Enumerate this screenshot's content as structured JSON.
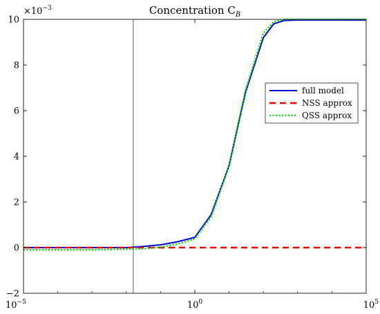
{
  "chart_data": {
    "type": "line",
    "title": "Concentration C",
    "title_subscript": "B",
    "xlabel": "",
    "ylabel": "",
    "x_scale": "log",
    "xlim": [
      1e-05,
      100000
    ],
    "ylim": [
      -2,
      10
    ],
    "y_exponent": {
      "base": "×10",
      "power": "−3"
    },
    "x_ticks": [
      {
        "value": 1e-05,
        "base": "10",
        "exp": "−5"
      },
      {
        "value": 1,
        "base": "10",
        "exp": "0"
      },
      {
        "value": 100000,
        "base": "10",
        "exp": "5"
      }
    ],
    "y_ticks": [
      {
        "value": -2,
        "label": "−2"
      },
      {
        "value": 0,
        "label": "0"
      },
      {
        "value": 2,
        "label": "2"
      },
      {
        "value": 4,
        "label": "4"
      },
      {
        "value": 6,
        "label": "6"
      },
      {
        "value": 8,
        "label": "8"
      },
      {
        "value": 10,
        "label": "10"
      }
    ],
    "vline_x": 0.016,
    "grid": false,
    "legend_position": "right",
    "series": [
      {
        "name": "full model",
        "color": "#0000dd",
        "style": "solid",
        "points": [
          [
            1e-05,
            0.0
          ],
          [
            0.001,
            0.0
          ],
          [
            0.01,
            0.0
          ],
          [
            0.03,
            0.05
          ],
          [
            0.1,
            0.12
          ],
          [
            0.3,
            0.25
          ],
          [
            1,
            0.45
          ],
          [
            3,
            1.45
          ],
          [
            10,
            3.6
          ],
          [
            30,
            6.8
          ],
          [
            100,
            9.2
          ],
          [
            200,
            9.8
          ],
          [
            400,
            9.95
          ],
          [
            1000,
            9.97
          ],
          [
            100000,
            9.97
          ]
        ]
      },
      {
        "name": "NSS approx",
        "color": "#ee0000",
        "style": "dashed",
        "points": [
          [
            1e-05,
            0.0
          ],
          [
            100000,
            0.0
          ]
        ]
      },
      {
        "name": "QSS approx",
        "color": "#00dd00",
        "style": "dotted",
        "points": [
          [
            1e-05,
            -0.1
          ],
          [
            0.001,
            -0.1
          ],
          [
            0.01,
            -0.07
          ],
          [
            0.03,
            -0.05
          ],
          [
            0.1,
            0.02
          ],
          [
            0.3,
            0.15
          ],
          [
            1,
            0.38
          ],
          [
            3,
            1.35
          ],
          [
            10,
            3.6
          ],
          [
            30,
            6.9
          ],
          [
            100,
            9.4
          ],
          [
            200,
            9.9
          ],
          [
            400,
            10.0
          ],
          [
            1000,
            10.0
          ],
          [
            100000,
            10.0
          ]
        ]
      }
    ]
  }
}
